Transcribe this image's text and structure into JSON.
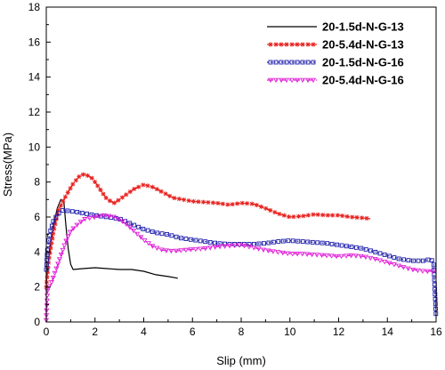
{
  "chart_data": {
    "type": "line",
    "title": "",
    "xlabel": "Slip (mm)",
    "ylabel": "Stress(MPa)",
    "xlim": [
      0,
      16
    ],
    "ylim": [
      0,
      18
    ],
    "xticks": [
      0,
      2,
      4,
      6,
      8,
      10,
      12,
      14,
      16
    ],
    "yticks": [
      0,
      2,
      4,
      6,
      8,
      10,
      12,
      14,
      16,
      18
    ],
    "legend_position": "top-right",
    "grid": false,
    "series": [
      {
        "name": "20-1.5d-N-G-13",
        "color": "#000000",
        "line_style": "solid",
        "marker": "none",
        "points": [
          [
            0,
            2.2
          ],
          [
            0.1,
            3.6
          ],
          [
            0.2,
            4.7
          ],
          [
            0.3,
            5.6
          ],
          [
            0.45,
            6.5
          ],
          [
            0.6,
            7.0
          ],
          [
            0.72,
            6.9
          ],
          [
            0.8,
            5.6
          ],
          [
            0.9,
            4.2
          ],
          [
            1.0,
            3.3
          ],
          [
            1.1,
            3.0
          ],
          [
            1.5,
            3.05
          ],
          [
            2.0,
            3.1
          ],
          [
            2.5,
            3.05
          ],
          [
            3.0,
            3.0
          ],
          [
            3.5,
            3.0
          ],
          [
            4.0,
            2.9
          ],
          [
            4.5,
            2.7
          ],
          [
            5.0,
            2.6
          ],
          [
            5.4,
            2.5
          ]
        ]
      },
      {
        "name": "20-5.4d-N-G-13",
        "color": "#e8211e",
        "line_style": "dashed",
        "marker": "star",
        "points": [
          [
            0,
            2.0
          ],
          [
            0.1,
            3.5
          ],
          [
            0.3,
            5.2
          ],
          [
            0.5,
            6.4
          ],
          [
            0.8,
            7.2
          ],
          [
            1.1,
            7.9
          ],
          [
            1.4,
            8.4
          ],
          [
            1.6,
            8.45
          ],
          [
            1.9,
            8.2
          ],
          [
            2.2,
            7.6
          ],
          [
            2.5,
            7.0
          ],
          [
            2.8,
            6.8
          ],
          [
            3.2,
            7.2
          ],
          [
            3.6,
            7.6
          ],
          [
            4.0,
            7.85
          ],
          [
            4.4,
            7.7
          ],
          [
            4.8,
            7.4
          ],
          [
            5.2,
            7.1
          ],
          [
            5.6,
            7.0
          ],
          [
            6.0,
            6.9
          ],
          [
            6.5,
            6.85
          ],
          [
            7.0,
            6.8
          ],
          [
            7.5,
            6.7
          ],
          [
            8.0,
            6.8
          ],
          [
            8.5,
            6.75
          ],
          [
            9.0,
            6.5
          ],
          [
            9.5,
            6.2
          ],
          [
            10.0,
            6.0
          ],
          [
            10.5,
            6.05
          ],
          [
            11.0,
            6.15
          ],
          [
            11.5,
            6.1
          ],
          [
            12.0,
            6.1
          ],
          [
            12.5,
            6.0
          ],
          [
            13.0,
            5.95
          ],
          [
            13.3,
            5.9
          ]
        ]
      },
      {
        "name": "20-1.5d-N-G-16",
        "color": "#1a1aa8",
        "line_style": "dotted",
        "marker": "square",
        "points": [
          [
            0,
            3.0
          ],
          [
            0.05,
            4.2
          ],
          [
            0.15,
            5.1
          ],
          [
            0.3,
            5.8
          ],
          [
            0.5,
            6.2
          ],
          [
            0.7,
            6.4
          ],
          [
            0.9,
            6.35
          ],
          [
            1.2,
            6.3
          ],
          [
            1.6,
            6.2
          ],
          [
            2.0,
            6.1
          ],
          [
            2.5,
            6.0
          ],
          [
            3.0,
            5.9
          ],
          [
            3.5,
            5.6
          ],
          [
            4.0,
            5.3
          ],
          [
            4.5,
            5.1
          ],
          [
            5.0,
            5.0
          ],
          [
            5.5,
            4.8
          ],
          [
            6.0,
            4.7
          ],
          [
            6.5,
            4.6
          ],
          [
            7.0,
            4.5
          ],
          [
            7.5,
            4.45
          ],
          [
            8.0,
            4.45
          ],
          [
            8.5,
            4.45
          ],
          [
            9.0,
            4.5
          ],
          [
            9.5,
            4.6
          ],
          [
            10.0,
            4.65
          ],
          [
            10.5,
            4.6
          ],
          [
            11.0,
            4.55
          ],
          [
            11.5,
            4.5
          ],
          [
            12.0,
            4.4
          ],
          [
            12.5,
            4.3
          ],
          [
            13.0,
            4.2
          ],
          [
            13.5,
            4.0
          ],
          [
            14.0,
            3.8
          ],
          [
            14.5,
            3.6
          ],
          [
            15.0,
            3.5
          ],
          [
            15.5,
            3.5
          ],
          [
            15.8,
            3.6
          ],
          [
            15.9,
            3.3
          ],
          [
            15.95,
            1.8
          ],
          [
            16.0,
            0.2
          ]
        ]
      },
      {
        "name": "20-5.4d-N-G-16",
        "color": "#e020d8",
        "line_style": "dash-dot",
        "marker": "triangle",
        "points": [
          [
            0,
            0.1
          ],
          [
            0.05,
            1.9
          ],
          [
            0.2,
            2.2
          ],
          [
            0.4,
            3.0
          ],
          [
            0.6,
            3.8
          ],
          [
            0.8,
            4.6
          ],
          [
            1.0,
            5.2
          ],
          [
            1.3,
            5.6
          ],
          [
            1.6,
            5.9
          ],
          [
            2.0,
            6.0
          ],
          [
            2.4,
            6.1
          ],
          [
            2.8,
            6.0
          ],
          [
            3.2,
            5.7
          ],
          [
            3.6,
            5.2
          ],
          [
            4.0,
            4.7
          ],
          [
            4.4,
            4.3
          ],
          [
            4.8,
            4.1
          ],
          [
            5.2,
            4.05
          ],
          [
            5.6,
            4.1
          ],
          [
            6.0,
            4.15
          ],
          [
            6.5,
            4.2
          ],
          [
            7.0,
            4.3
          ],
          [
            7.5,
            4.35
          ],
          [
            8.0,
            4.4
          ],
          [
            8.5,
            4.25
          ],
          [
            9.0,
            4.1
          ],
          [
            9.5,
            4.0
          ],
          [
            10.0,
            3.9
          ],
          [
            10.5,
            3.9
          ],
          [
            11.0,
            3.85
          ],
          [
            11.5,
            3.8
          ],
          [
            12.0,
            3.75
          ],
          [
            12.5,
            3.8
          ],
          [
            13.0,
            3.75
          ],
          [
            13.5,
            3.6
          ],
          [
            14.0,
            3.4
          ],
          [
            14.5,
            3.2
          ],
          [
            15.0,
            3.0
          ],
          [
            15.5,
            2.9
          ],
          [
            16.0,
            2.9
          ]
        ]
      }
    ]
  }
}
